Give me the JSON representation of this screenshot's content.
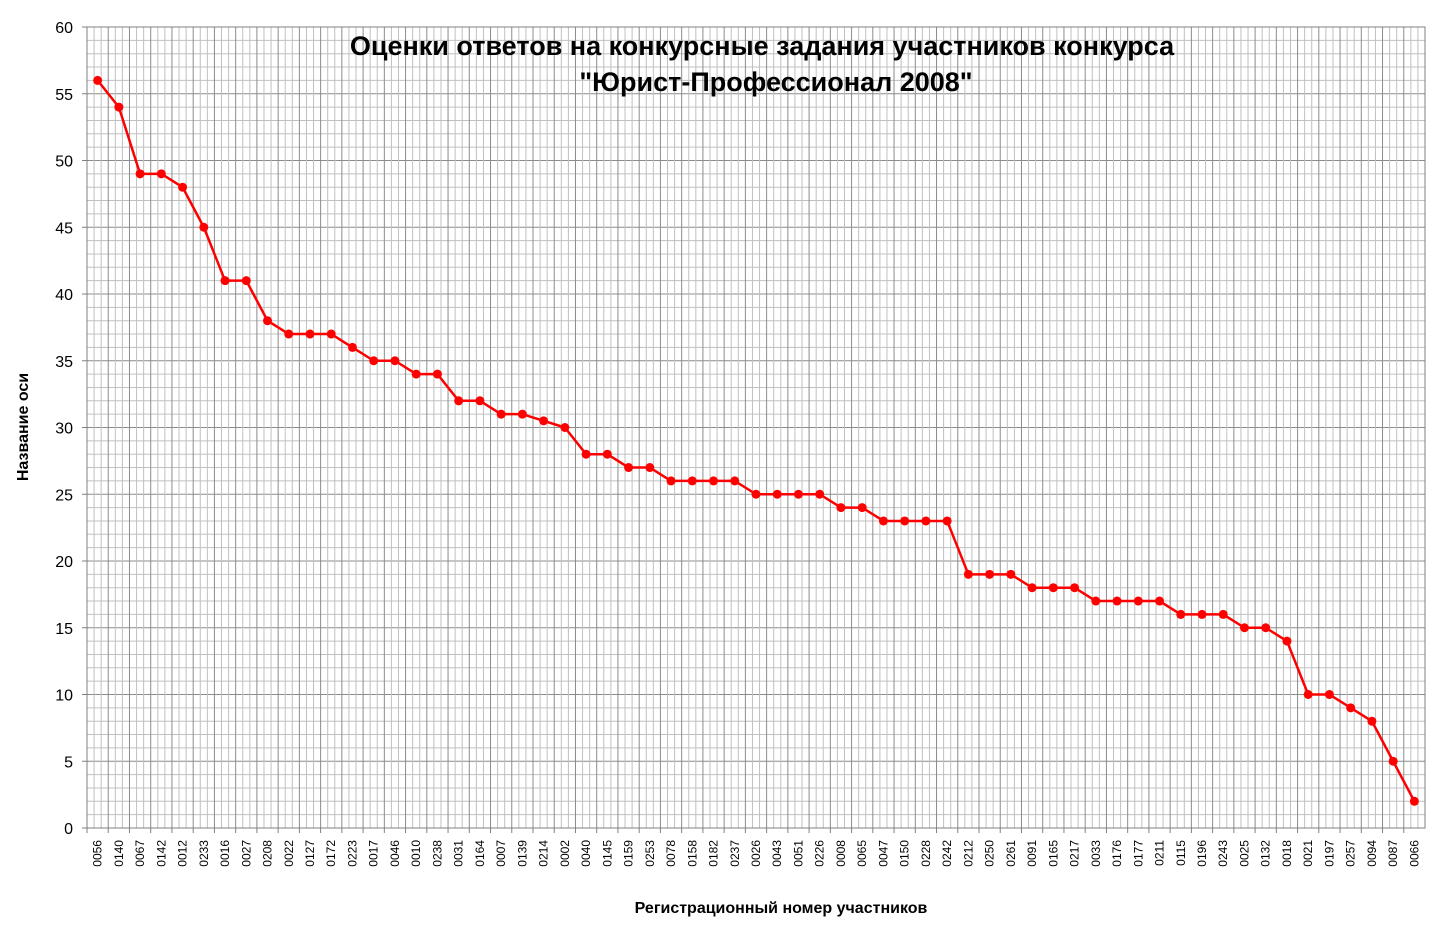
{
  "chart_data": {
    "type": "line",
    "title": "Оценки ответов на конкурсные задания участников конкурса",
    "subtitle": "\"Юрист-Профессионал 2008\"",
    "xlabel": "Регистрационный номер участников",
    "ylabel": "Название оси",
    "ylim": [
      0,
      60
    ],
    "y_major_step": 5,
    "y_minor_step": 1,
    "grid": true,
    "legend": "none",
    "line_color": "#ff0000",
    "marker_color": "#ff0000",
    "categories": [
      "0056",
      "0140",
      "0067",
      "0142",
      "0012",
      "0233",
      "0016",
      "0027",
      "0208",
      "0022",
      "0127",
      "0172",
      "0223",
      "0017",
      "0046",
      "0010",
      "0238",
      "0031",
      "0164",
      "0007",
      "0139",
      "0214",
      "0002",
      "0040",
      "0145",
      "0159",
      "0253",
      "0078",
      "0158",
      "0182",
      "0237",
      "0026",
      "0043",
      "0051",
      "0226",
      "0008",
      "0065",
      "0047",
      "0150",
      "0228",
      "0242",
      "0212",
      "0250",
      "0261",
      "0091",
      "0165",
      "0217",
      "0033",
      "0176",
      "0177",
      "0211",
      "0115",
      "0196",
      "0243",
      "0025",
      "0132",
      "0018",
      "0021",
      "0197",
      "0257",
      "0094",
      "0087",
      "0066"
    ],
    "values": [
      56,
      54,
      49,
      49,
      48,
      45,
      41,
      41,
      38,
      37,
      37,
      37,
      36,
      35,
      35,
      34,
      34,
      32,
      32,
      31,
      31,
      30.5,
      30,
      28,
      28,
      27,
      27,
      26,
      26,
      26,
      26,
      25,
      25,
      25,
      25,
      24,
      24,
      23,
      23,
      23,
      23,
      19,
      19,
      19,
      18,
      18,
      18,
      17,
      17,
      17,
      17,
      16,
      16,
      16,
      15,
      15,
      14,
      10,
      10,
      9,
      8,
      5,
      2
    ]
  }
}
